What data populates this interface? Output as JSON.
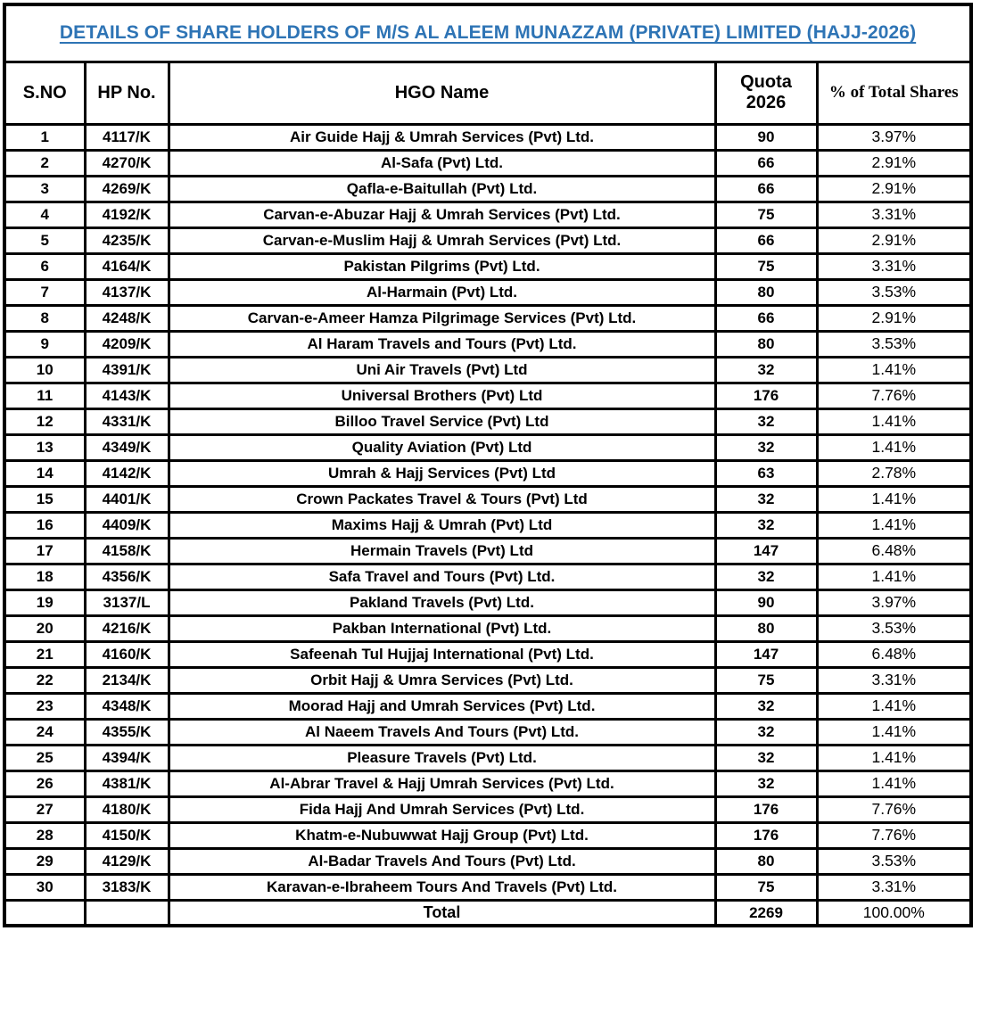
{
  "title": "DETAILS OF SHARE HOLDERS OF M/S AL ALEEM MUNAZZAM (PRIVATE) LIMITED (HAJJ-2026)",
  "accent_color": "#2E74B5",
  "table": {
    "headers": {
      "sno": "S.NO",
      "hp": "HP No.",
      "name": "HGO Name",
      "quota_line1": "Quota",
      "quota_line2": "2026",
      "pct": "% of Total Shares"
    },
    "rows": [
      {
        "sno": "1",
        "hp": "4117/K",
        "name": "Air Guide Hajj & Umrah Services (Pvt) Ltd.",
        "quota": "90",
        "pct": "3.97%"
      },
      {
        "sno": "2",
        "hp": "4270/K",
        "name": "Al-Safa (Pvt) Ltd.",
        "quota": "66",
        "pct": "2.91%"
      },
      {
        "sno": "3",
        "hp": "4269/K",
        "name": "Qafla-e-Baitullah (Pvt) Ltd.",
        "quota": "66",
        "pct": "2.91%"
      },
      {
        "sno": "4",
        "hp": "4192/K",
        "name": "Carvan-e-Abuzar Hajj & Umrah Services (Pvt) Ltd.",
        "quota": "75",
        "pct": "3.31%"
      },
      {
        "sno": "5",
        "hp": "4235/K",
        "name": "Carvan-e-Muslim Hajj & Umrah Services (Pvt) Ltd.",
        "quota": "66",
        "pct": "2.91%"
      },
      {
        "sno": "6",
        "hp": "4164/K",
        "name": "Pakistan Pilgrims (Pvt) Ltd.",
        "quota": "75",
        "pct": "3.31%"
      },
      {
        "sno": "7",
        "hp": "4137/K",
        "name": "Al-Harmain (Pvt) Ltd.",
        "quota": "80",
        "pct": "3.53%"
      },
      {
        "sno": "8",
        "hp": "4248/K",
        "name": "Carvan-e-Ameer Hamza Pilgrimage Services (Pvt) Ltd.",
        "quota": "66",
        "pct": "2.91%"
      },
      {
        "sno": "9",
        "hp": "4209/K",
        "name": "Al Haram Travels and Tours (Pvt) Ltd.",
        "quota": "80",
        "pct": "3.53%"
      },
      {
        "sno": "10",
        "hp": "4391/K",
        "name": "Uni Air Travels (Pvt) Ltd",
        "quota": "32",
        "pct": "1.41%"
      },
      {
        "sno": "11",
        "hp": "4143/K",
        "name": "Universal Brothers (Pvt) Ltd",
        "quota": "176",
        "pct": "7.76%"
      },
      {
        "sno": "12",
        "hp": "4331/K",
        "name": "Billoo Travel Service (Pvt) Ltd",
        "quota": "32",
        "pct": "1.41%"
      },
      {
        "sno": "13",
        "hp": "4349/K",
        "name": "Quality Aviation (Pvt) Ltd",
        "quota": "32",
        "pct": "1.41%"
      },
      {
        "sno": "14",
        "hp": "4142/K",
        "name": "Umrah & Hajj Services (Pvt) Ltd",
        "quota": "63",
        "pct": "2.78%"
      },
      {
        "sno": "15",
        "hp": "4401/K",
        "name": "Crown Packates Travel & Tours (Pvt) Ltd",
        "quota": "32",
        "pct": "1.41%"
      },
      {
        "sno": "16",
        "hp": "4409/K",
        "name": "Maxims Hajj & Umrah (Pvt) Ltd",
        "quota": "32",
        "pct": "1.41%"
      },
      {
        "sno": "17",
        "hp": "4158/K",
        "name": "Hermain Travels (Pvt) Ltd",
        "quota": "147",
        "pct": "6.48%"
      },
      {
        "sno": "18",
        "hp": "4356/K",
        "name": "Safa Travel and Tours (Pvt) Ltd.",
        "quota": "32",
        "pct": "1.41%"
      },
      {
        "sno": "19",
        "hp": "3137/L",
        "name": "Pakland Travels (Pvt) Ltd.",
        "quota": "90",
        "pct": "3.97%"
      },
      {
        "sno": "20",
        "hp": "4216/K",
        "name": "Pakban International (Pvt) Ltd.",
        "quota": "80",
        "pct": "3.53%"
      },
      {
        "sno": "21",
        "hp": "4160/K",
        "name": "Safeenah Tul Hujjaj International (Pvt) Ltd.",
        "quota": "147",
        "pct": "6.48%"
      },
      {
        "sno": "22",
        "hp": "2134/K",
        "name": "Orbit Hajj & Umra Services (Pvt) Ltd.",
        "quota": "75",
        "pct": "3.31%"
      },
      {
        "sno": "23",
        "hp": "4348/K",
        "name": "Moorad Hajj and Umrah Services (Pvt) Ltd.",
        "quota": "32",
        "pct": "1.41%"
      },
      {
        "sno": "24",
        "hp": "4355/K",
        "name": "Al Naeem Travels And Tours (Pvt) Ltd.",
        "quota": "32",
        "pct": "1.41%"
      },
      {
        "sno": "25",
        "hp": "4394/K",
        "name": "Pleasure Travels (Pvt) Ltd.",
        "quota": "32",
        "pct": "1.41%"
      },
      {
        "sno": "26",
        "hp": "4381/K",
        "name": "Al-Abrar Travel & Hajj Umrah Services (Pvt) Ltd.",
        "quota": "32",
        "pct": "1.41%"
      },
      {
        "sno": "27",
        "hp": "4180/K",
        "name": "Fida Hajj And Umrah Services (Pvt) Ltd.",
        "quota": "176",
        "pct": "7.76%"
      },
      {
        "sno": "28",
        "hp": "4150/K",
        "name": "Khatm-e-Nubuwwat Hajj Group (Pvt) Ltd.",
        "quota": "176",
        "pct": "7.76%"
      },
      {
        "sno": "29",
        "hp": "4129/K",
        "name": "Al-Badar Travels And Tours (Pvt) Ltd.",
        "quota": "80",
        "pct": "3.53%"
      },
      {
        "sno": "30",
        "hp": "3183/K",
        "name": "Karavan-e-Ibraheem Tours And Travels (Pvt) Ltd.",
        "quota": "75",
        "pct": "3.31%"
      }
    ],
    "total": {
      "label": "Total",
      "quota": "2269",
      "pct": "100.00%"
    }
  }
}
